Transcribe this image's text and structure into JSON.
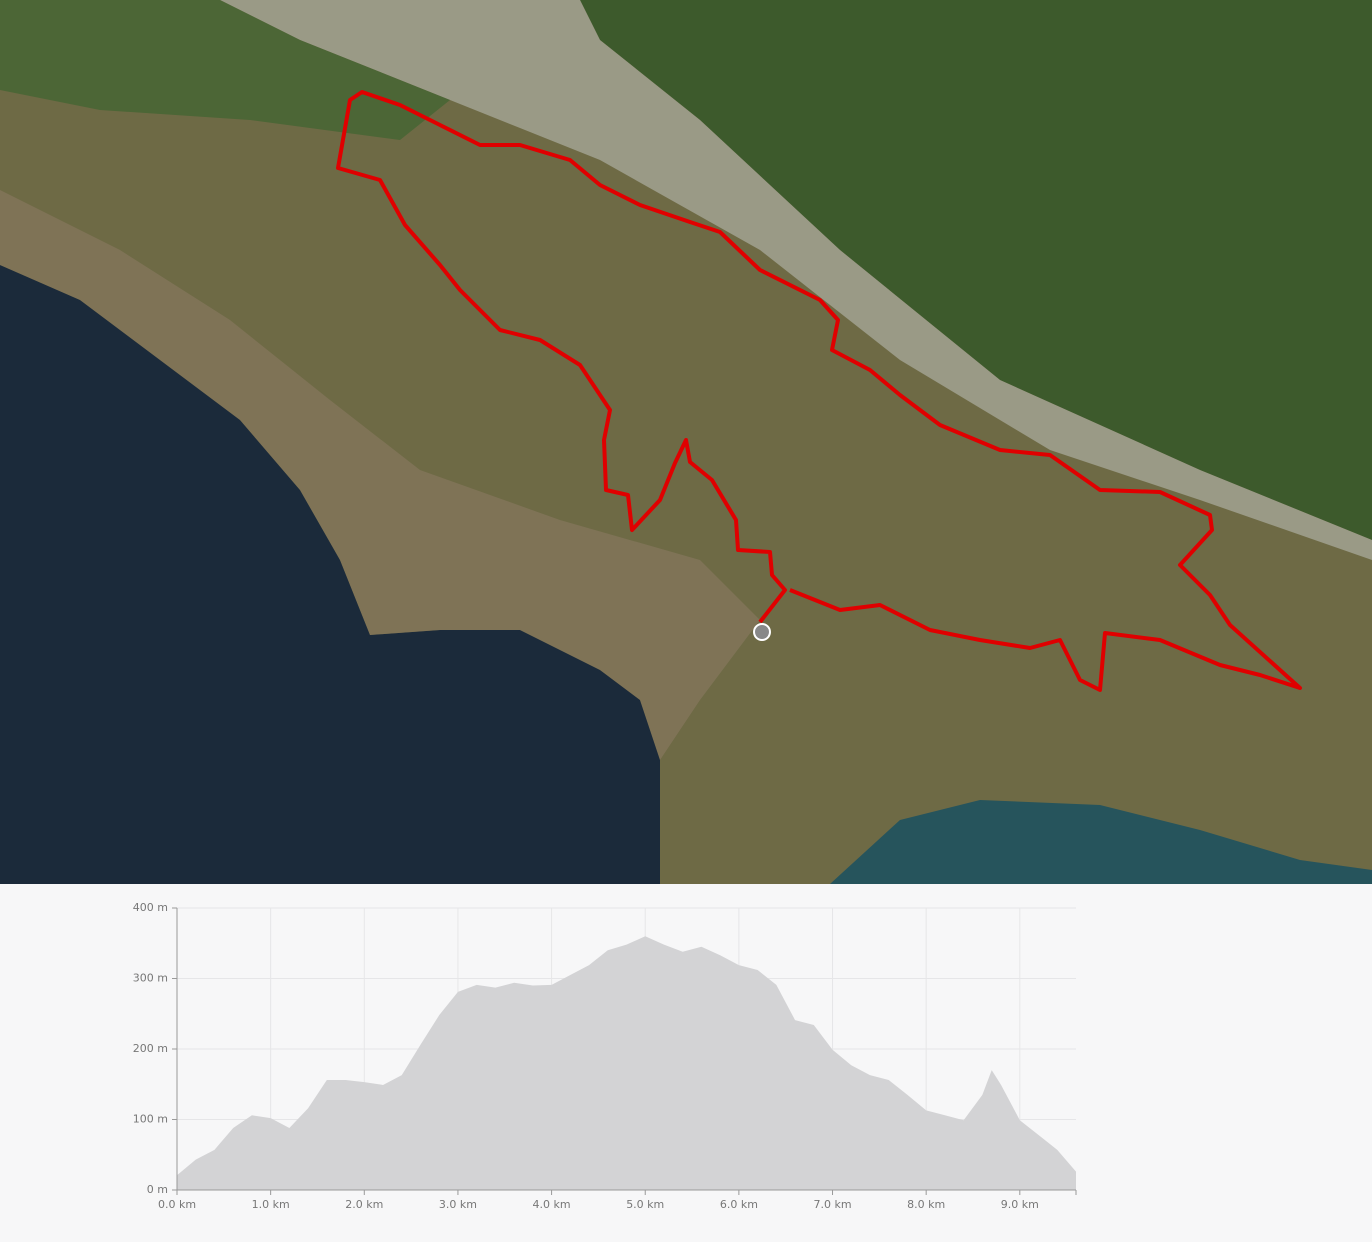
{
  "chart_data": {
    "type": "area",
    "color": "#d3d3d5",
    "grid": true,
    "x": [
      0,
      0.2,
      0.4,
      0.6,
      0.8,
      1.0,
      1.2,
      1.4,
      1.6,
      1.8,
      2.0,
      2.2,
      2.4,
      2.6,
      2.8,
      3.0,
      3.2,
      3.4,
      3.6,
      3.8,
      4.0,
      4.2,
      4.4,
      4.6,
      4.8,
      5.0,
      5.2,
      5.4,
      5.6,
      5.8,
      6.0,
      6.2,
      6.4,
      6.6,
      6.8,
      7.0,
      7.2,
      7.4,
      7.6,
      7.8,
      8.0,
      8.2,
      8.4,
      8.6,
      8.7,
      8.8,
      9.0,
      9.2,
      9.4,
      9.6
    ],
    "values": [
      21,
      43,
      57,
      88,
      106,
      102,
      88,
      116,
      156,
      156,
      153,
      149,
      163,
      206,
      248,
      281,
      291,
      287,
      294,
      290,
      291,
      305,
      319,
      340,
      348,
      360,
      348,
      338,
      345,
      333,
      319,
      312,
      291,
      241,
      234,
      199,
      177,
      163,
      156,
      135,
      113,
      106,
      99,
      135,
      170,
      149,
      99,
      78,
      57,
      26
    ],
    "xlim": [
      0,
      9.6
    ],
    "ylim": [
      0,
      400
    ],
    "xticks": [
      {
        "value": 0,
        "label": "0.0 km"
      },
      {
        "value": 1,
        "label": "1.0 km"
      },
      {
        "value": 2,
        "label": "2.0 km"
      },
      {
        "value": 3,
        "label": "3.0 km"
      },
      {
        "value": 4,
        "label": "4.0 km"
      },
      {
        "value": 5,
        "label": "5.0 km"
      },
      {
        "value": 6,
        "label": "6.0 km"
      },
      {
        "value": 7,
        "label": "7.0 km"
      },
      {
        "value": 8,
        "label": "8.0 km"
      },
      {
        "value": 9,
        "label": "9.0 km"
      }
    ],
    "yticks": [
      {
        "value": 0,
        "label": "0 m"
      },
      {
        "value": 100,
        "label": "100 m"
      },
      {
        "value": 200,
        "label": "200 m"
      },
      {
        "value": 300,
        "label": "300 m"
      },
      {
        "value": 400,
        "label": "400 m"
      }
    ]
  }
}
